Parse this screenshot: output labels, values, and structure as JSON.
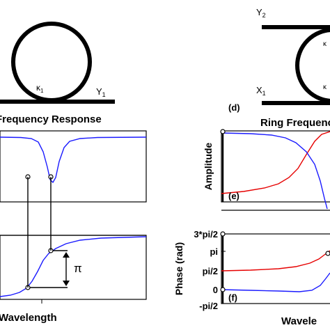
{
  "left_panel": {
    "ring_coupling_label": "κ",
    "ring_coupling_sub": "1",
    "output_label": "Y",
    "output_sub": "1",
    "title": "Frequency Response",
    "xlabel": "Wavelength",
    "phase_shift_label": "π"
  },
  "right_panel": {
    "top_port_label": "Y",
    "top_port_sub": "2",
    "bottom_port_label": "X",
    "bottom_port_sub": "1",
    "ring_coupling_top": "κ",
    "ring_coupling_bottom": "κ",
    "panel_d_tag": "(d)",
    "title": "Ring Frequenc",
    "amp_ylabel": "Amplitude",
    "panel_e_tag": "(e)",
    "phase_ylabel": "Phase (rad)",
    "panel_f_tag": "(f)",
    "xlabel": "Wavele",
    "phase_ticks": [
      "3*pi/2",
      "pi",
      "pi/2",
      "0",
      "-pi/2"
    ]
  },
  "colors": {
    "blue_curve": "#1a1aff",
    "red_curve": "#e60000",
    "axis": "#000000"
  }
}
